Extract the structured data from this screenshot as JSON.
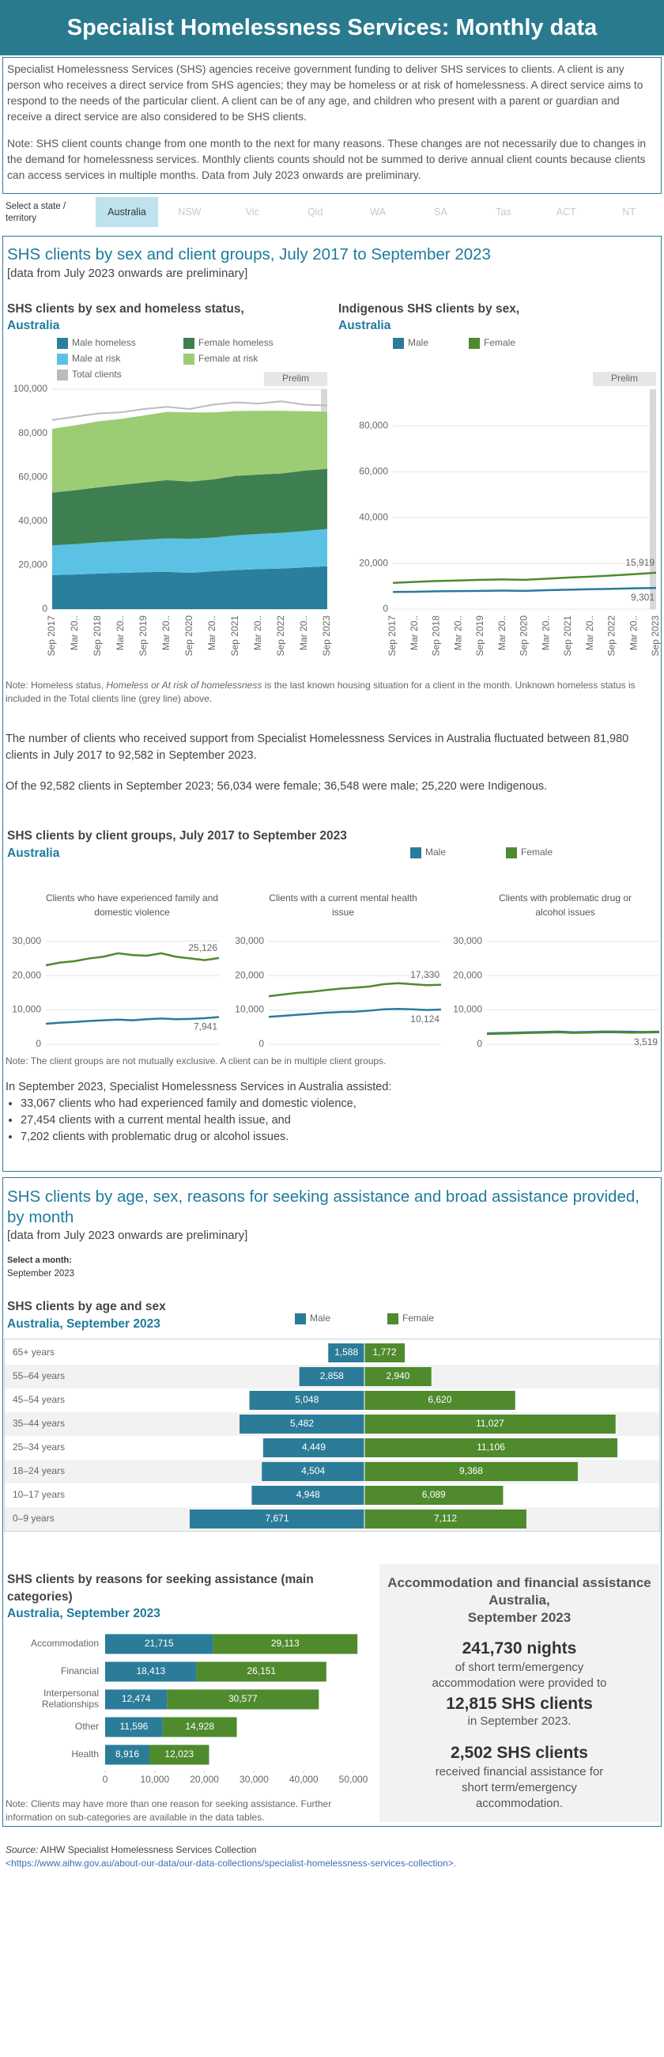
{
  "header": {
    "title": "Specialist Homelessness Services: Monthly data"
  },
  "intro": [
    "Specialist Homelessness Services (SHS) agencies receive government funding to deliver SHS services to clients. A client is any person who receives a direct service from SHS agencies; they may be homeless or at risk of homelessness. A direct service aims to respond to the needs of the particular client. A client can be of any age, and children who present with a parent or guardian and receive a direct service are also considered to be SHS clients.",
    "Note: SHS client counts change from one month to the next for many reasons. These changes are not necessarily due to changes in the demand for homelessness services. Monthly clients counts should not be summed to derive annual client counts because clients can access services in multiple months. Data from July 2023 onwards are preliminary."
  ],
  "filter": {
    "label": "Select a state / territory",
    "options": [
      "Australia",
      "NSW",
      "Vic",
      "Qld",
      "WA",
      "SA",
      "Tas",
      "ACT",
      "NT"
    ],
    "selected": "Australia"
  },
  "section1": {
    "title": "SHS clients by sex and client groups, July 2017 to September 2023",
    "subtitle": "[data from July 2023 onwards are preliminary]",
    "note": [
      "Note: Homeless status, ",
      "Homeless or At risk of homelessness",
      " is the last known housing situation for a client in the month. Unknown homeless status is included in the Total clients line (grey line) above."
    ],
    "summary": [
      "The number of clients who received support from Specialist Homelessness Services in Australia fluctuated between 81,980 clients in July 2017 to 92,582 in September 2023.",
      "Of the 92,582 clients in September 2023; 56,034 were female; 36,548 were male; 25,220 were Indigenous."
    ],
    "groups_title": "SHS clients by client groups, July 2017 to September 2023",
    "groups_subtitle": "Australia",
    "groups_note": "Note: The client groups are not mutually exclusive. A client can be in multiple client groups.",
    "groups_intro": "In September 2023, Specialist Homelessness Services in Australia assisted:",
    "groups_list": [
      "33,067 clients who had experienced family and domestic violence,",
      "27,454 clients with a current mental health issue, and",
      "7,202 clients with problematic drug or alcohol issues."
    ]
  },
  "section2": {
    "title": "SHS clients by age, sex, reasons for seeking assistance and broad assistance provided, by month",
    "subtitle": "[data from July 2023 onwards are preliminary]",
    "month_label": "Select a month:",
    "month": "September 2023",
    "reasons_note": "Note: Clients may have more than one reason for seeking assistance. Further information on sub-categories are available in the data tables.",
    "assistance": {
      "title": "Accommodation and financial assistance",
      "place": "Australia,",
      "month": "September 2023",
      "nights": "241,730 nights",
      "nights_text": "of short term/emergency accommodation were provided to",
      "clients": "12,815 SHS clients",
      "clients_text": "in September 2023.",
      "financial": "2,502 SHS clients",
      "financial_text": "received financial assistance for short term/emergency accommodation."
    }
  },
  "source": {
    "label": "Source:",
    "text": " AIHW Specialist Homelessness Services Collection",
    "url": "<https://www.aihw.gov.au/about-our-data/our-data-collections/specialist-homelessness-services-collection>."
  },
  "chart_data": [
    {
      "type": "area",
      "title": "SHS clients by sex and homeless status,",
      "subtitle": "Australia",
      "x": [
        "Sep 2017",
        "Mar 20..",
        "Sep 2018",
        "Mar 20..",
        "Sep 2019",
        "Mar 20..",
        "Sep 2020",
        "Mar 20..",
        "Sep 2021",
        "Mar 20..",
        "Sep 2022",
        "Mar 20..",
        "Sep 2023"
      ],
      "series": [
        {
          "name": "Male homeless",
          "color": "#2a7f9e",
          "values": [
            15500,
            15800,
            16200,
            16500,
            16800,
            17000,
            16500,
            17200,
            17800,
            18200,
            18500,
            19000,
            19500
          ]
        },
        {
          "name": "Male at risk",
          "color": "#5bc2e4",
          "values": [
            13500,
            13800,
            14200,
            14500,
            14800,
            15200,
            15500,
            15300,
            15800,
            16000,
            16200,
            16500,
            17000
          ]
        },
        {
          "name": "Female homeless",
          "color": "#3d7f50",
          "values": [
            24000,
            24500,
            25000,
            25500,
            26000,
            26500,
            26000,
            26500,
            27000,
            27000,
            27000,
            27500,
            27300
          ]
        },
        {
          "name": "Female at risk",
          "color": "#9ccd74",
          "values": [
            29000,
            29500,
            30000,
            30000,
            30500,
            31000,
            31500,
            30500,
            29500,
            29000,
            28500,
            27000,
            26000
          ]
        },
        {
          "name": "Total clients",
          "color": "#bbbbbb",
          "type": "line",
          "values": [
            86000,
            87500,
            89000,
            89500,
            91000,
            92000,
            91000,
            93000,
            94000,
            93500,
            94500,
            93000,
            92582
          ]
        }
      ],
      "ylim": [
        0,
        100000
      ],
      "yticks": [
        0,
        {
          "value": 20000,
          "label": "20,000"
        },
        {
          "value": 40000,
          "label": "40,000"
        },
        {
          "value": 60000,
          "label": "60,000"
        },
        {
          "value": 80000,
          "label": "80,000"
        },
        {
          "value": 100000,
          "label": "100,000"
        }
      ],
      "grid": true,
      "prelim_label": "Prelim"
    },
    {
      "type": "line",
      "title": "Indigenous SHS clients by sex,",
      "subtitle": "Australia",
      "x": [
        "Sep 2017",
        "Mar 20..",
        "Sep 2018",
        "Mar 20..",
        "Sep 2019",
        "Mar 20..",
        "Sep 2020",
        "Mar 20..",
        "Sep 2021",
        "Mar 20..",
        "Sep 2022",
        "Mar 20..",
        "Sep 2023"
      ],
      "series": [
        {
          "name": "Male",
          "color": "#2a7b9b",
          "values": [
            7500,
            7600,
            7800,
            7900,
            8000,
            8100,
            8000,
            8300,
            8500,
            8700,
            8900,
            9100,
            9301
          ],
          "value_labels": [
            null,
            null,
            null,
            null,
            null,
            null,
            null,
            null,
            null,
            null,
            null,
            null,
            "9,301"
          ]
        },
        {
          "name": "Female",
          "color": "#4e8a2e",
          "values": [
            11500,
            11900,
            12300,
            12500,
            12800,
            13000,
            12800,
            13300,
            13800,
            14200,
            14700,
            15300,
            15919
          ],
          "value_labels": [
            null,
            null,
            null,
            null,
            null,
            null,
            null,
            null,
            null,
            null,
            null,
            null,
            "15,919"
          ]
        }
      ],
      "ylim": [
        0,
        96000
      ],
      "yticks": [
        0,
        {
          "value": 20000,
          "label": "20,000"
        },
        {
          "value": 40000,
          "label": "40,000"
        },
        {
          "value": 60000,
          "label": "60,000"
        },
        {
          "value": 80000,
          "label": "80,000"
        }
      ],
      "grid": true,
      "prelim_label": "Prelim"
    },
    {
      "type": "line",
      "title": "Clients who have experienced family and domestic violence",
      "series": [
        {
          "name": "Male",
          "color": "#2a7b9b",
          "values": [
            6000,
            6300,
            6500,
            6800,
            7000,
            7200,
            7000,
            7300,
            7500,
            7300,
            7400,
            7600,
            7941
          ],
          "value_labels": [
            null,
            null,
            null,
            null,
            null,
            null,
            null,
            null,
            null,
            null,
            null,
            null,
            "7,941"
          ]
        },
        {
          "name": "Female",
          "color": "#4e8a2e",
          "values": [
            23000,
            23800,
            24200,
            25000,
            25500,
            26500,
            26000,
            25800,
            26500,
            25500,
            25000,
            24500,
            25126
          ],
          "value_labels": [
            null,
            null,
            null,
            null,
            null,
            null,
            null,
            null,
            null,
            null,
            null,
            null,
            "25,126"
          ]
        }
      ],
      "ylim": [
        0,
        35000
      ],
      "yticks": [
        0,
        {
          "value": 10000,
          "label": "10,000"
        },
        {
          "value": 20000,
          "label": "20,000"
        },
        {
          "value": 30000,
          "label": "30,000"
        }
      ],
      "grid": true
    },
    {
      "type": "line",
      "title": "Clients with a current mental health issue",
      "series": [
        {
          "color": "#2a7b9b",
          "values": [
            8000,
            8300,
            8600,
            8900,
            9200,
            9400,
            9500,
            9800,
            10200,
            10300,
            10200,
            10000,
            10124
          ],
          "value_labels": [
            null,
            null,
            null,
            null,
            null,
            null,
            null,
            null,
            null,
            null,
            null,
            null,
            "10,124"
          ]
        },
        {
          "color": "#4e8a2e",
          "values": [
            14000,
            14500,
            15000,
            15300,
            15800,
            16200,
            16500,
            16800,
            17500,
            17800,
            17500,
            17200,
            17330
          ],
          "value_labels": [
            null,
            null,
            null,
            null,
            null,
            null,
            null,
            null,
            null,
            null,
            null,
            null,
            "17,330"
          ]
        }
      ],
      "ylim": [
        0,
        35000
      ],
      "yticks": [
        0,
        {
          "value": 10000,
          "label": "10,000"
        },
        {
          "value": 20000,
          "label": "20,000"
        },
        {
          "value": 30000,
          "label": "30,000"
        }
      ],
      "grid": true
    },
    {
      "type": "line",
      "title": "Clients with problematic drug or alcohol issues",
      "series": [
        {
          "color": "#2a7b9b",
          "values": [
            3200,
            3300,
            3400,
            3500,
            3600,
            3700,
            3500,
            3600,
            3700,
            3700,
            3650,
            3600,
            3683
          ]
        },
        {
          "color": "#4e8a2e",
          "values": [
            3000,
            3100,
            3200,
            3300,
            3400,
            3500,
            3300,
            3400,
            3500,
            3500,
            3400,
            3450,
            3519
          ],
          "value_labels": [
            null,
            null,
            null,
            null,
            null,
            null,
            null,
            null,
            null,
            null,
            null,
            null,
            "3,519"
          ]
        }
      ],
      "ylim": [
        0,
        35000
      ],
      "yticks": [
        0,
        {
          "value": 10000,
          "label": "10,000"
        },
        {
          "value": 20000,
          "label": "20,000"
        },
        {
          "value": 30000,
          "label": "30,000"
        }
      ],
      "grid": true
    },
    {
      "type": "bar",
      "horizontal": true,
      "diverging": true,
      "title": "SHS clients by age and sex",
      "subtitle": "Australia, September 2023",
      "categories": [
        "65+ years",
        "55–64 years",
        "45–54 years",
        "35–44 years",
        "25–34 years",
        "18–24 years",
        "10–17 years",
        "0–9 years"
      ],
      "series": [
        {
          "name": "Male",
          "color": "#2b7c99",
          "values": [
            1588,
            2858,
            5048,
            5482,
            4449,
            4504,
            4948,
            7671
          ],
          "value_labels": [
            "1,588",
            "2,858",
            "5,048",
            "5,482",
            "4,449",
            "4,504",
            "4,948",
            "7,671"
          ]
        },
        {
          "name": "Female",
          "color": "#4f8a2d",
          "values": [
            1772,
            2940,
            6620,
            11027,
            11106,
            9368,
            6089,
            7112
          ],
          "value_labels": [
            "1,772",
            "2,940",
            "6,620",
            "11,027",
            "11,106",
            "9,368",
            "6,089",
            "7,112"
          ]
        }
      ]
    },
    {
      "type": "bar",
      "horizontal": true,
      "stacked": true,
      "title": "SHS clients by reasons for seeking assistance (main categories)",
      "subtitle": "Australia, September 2023",
      "categories": [
        "Accommodation",
        "Financial",
        "Interpersonal Relationships",
        "Other",
        "Health"
      ],
      "series": [
        {
          "color": "#2b7c99",
          "values": [
            21715,
            18413,
            12474,
            11596,
            8916
          ],
          "value_labels": [
            "21,715",
            "18,413",
            "12,474",
            "11,596",
            "8,916"
          ]
        },
        {
          "color": "#4f8a2d",
          "values": [
            29113,
            26151,
            30577,
            14928,
            12023
          ],
          "value_labels": [
            "29,113",
            "26,151",
            "30,577",
            "14,928",
            "12,023"
          ]
        }
      ],
      "xlim": [
        0,
        50000
      ],
      "xticks": [
        0,
        {
          "value": 10000,
          "label": "10,000"
        },
        {
          "value": 20000,
          "label": "20,000"
        },
        {
          "value": 30000,
          "label": "30,000"
        },
        {
          "value": 40000,
          "label": "40,000"
        },
        {
          "value": 50000,
          "label": "50,000"
        }
      ]
    }
  ]
}
